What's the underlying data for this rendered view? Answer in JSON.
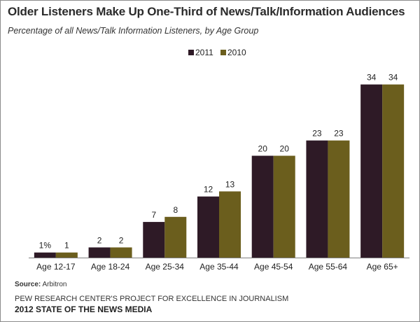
{
  "chart_data": {
    "type": "bar",
    "title": "Older Listeners Make Up One-Third  of News/Talk/Information  Audiences",
    "subtitle": "Percentage of all News/Talk Information Listeners, by Age Group",
    "categories": [
      "Age 12-17",
      "Age 18-24",
      "Age 25-34",
      "Age 35-44",
      "Age 45-54",
      "Age 55-64",
      "Age 65+"
    ],
    "series": [
      {
        "name": "2011",
        "color": "#2e1a26",
        "values": [
          1,
          2,
          7,
          12,
          20,
          23,
          34
        ],
        "labels": [
          "1%",
          "2",
          "7",
          "12",
          "20",
          "23",
          "34"
        ]
      },
      {
        "name": "2010",
        "color": "#6b5e1d",
        "values": [
          1,
          2,
          8,
          13,
          20,
          23,
          34
        ],
        "labels": [
          "1",
          "2",
          "8",
          "13",
          "20",
          "23",
          "34"
        ]
      }
    ],
    "ylim": [
      0,
      40
    ],
    "grid": false,
    "legend_placement": "top-center",
    "xlabel": "",
    "ylabel": ""
  },
  "footer": {
    "source_label": "Source:",
    "source_text": "Arbitron",
    "credit_line1": "PEW RESEARCH CENTER'S PROJECT FOR EXCELLENCE IN JOURNALISM",
    "credit_line2": "2012 STATE OF THE NEWS MEDIA"
  }
}
